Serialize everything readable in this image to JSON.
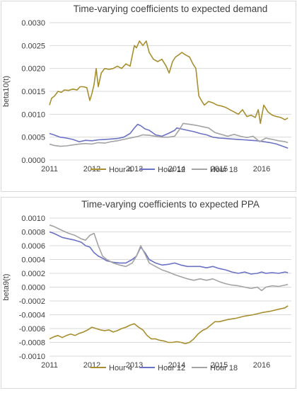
{
  "chart_data": [
    {
      "type": "line",
      "title": "Time-varying coefficients to expected demand",
      "xlabel": "",
      "ylabel": "beta10(t)",
      "xlim": [
        2011,
        2016.7
      ],
      "ylim": [
        0,
        0.003
      ],
      "x_ticks": [
        "2011",
        "2012",
        "2013",
        "2014",
        "2015",
        "2016"
      ],
      "y_ticks": [
        "0.0000",
        "0.0005",
        "0.0010",
        "0.0015",
        "0.0020",
        "0.0025",
        "0.0030"
      ],
      "grid": "horizontal",
      "legend": "bottom",
      "series": [
        {
          "name": "Hour 4",
          "color": "#a88e2e",
          "x": [
            2011.0,
            2011.05,
            2011.12,
            2011.2,
            2011.28,
            2011.35,
            2011.45,
            2011.55,
            2011.65,
            2011.72,
            2011.8,
            2011.88,
            2011.95,
            2012.0,
            2012.05,
            2012.1,
            2012.15,
            2012.22,
            2012.3,
            2012.4,
            2012.5,
            2012.6,
            2012.7,
            2012.8,
            2012.9,
            2013.0,
            2013.05,
            2013.12,
            2013.2,
            2013.28,
            2013.35,
            2013.45,
            2013.55,
            2013.65,
            2013.75,
            2013.82,
            2013.9,
            2013.97,
            2014.05,
            2014.12,
            2014.2,
            2014.3,
            2014.38,
            2014.45,
            2014.52,
            2014.58,
            2014.65,
            2014.75,
            2014.85,
            2014.95,
            2015.05,
            2015.15,
            2015.25,
            2015.35,
            2015.45,
            2015.55,
            2015.65,
            2015.75,
            2015.85,
            2015.92,
            2015.97,
            2016.05,
            2016.15,
            2016.25,
            2016.35,
            2016.45,
            2016.55,
            2016.62
          ],
          "values": [
            0.0012,
            0.00135,
            0.0014,
            0.0015,
            0.00148,
            0.00153,
            0.00152,
            0.00155,
            0.00153,
            0.0016,
            0.0016,
            0.00158,
            0.0013,
            0.00145,
            0.00165,
            0.002,
            0.0016,
            0.0019,
            0.002,
            0.00198,
            0.002,
            0.00205,
            0.002,
            0.0021,
            0.00205,
            0.0025,
            0.00245,
            0.0026,
            0.0025,
            0.0026,
            0.00235,
            0.0022,
            0.00215,
            0.0022,
            0.00205,
            0.0019,
            0.00215,
            0.00225,
            0.0023,
            0.00235,
            0.0023,
            0.00225,
            0.0021,
            0.002,
            0.0014,
            0.0013,
            0.0012,
            0.00128,
            0.00125,
            0.0012,
            0.00118,
            0.00115,
            0.0011,
            0.00105,
            0.001,
            0.0011,
            0.00095,
            0.00098,
            0.00093,
            0.0011,
            0.0008,
            0.0012,
            0.00105,
            0.00098,
            0.00095,
            0.00093,
            0.00088,
            0.00092
          ]
        },
        {
          "name": "Hour 12",
          "color": "#6b72c4",
          "x": [
            2011.0,
            2011.1,
            2011.25,
            2011.4,
            2011.55,
            2011.7,
            2011.85,
            2012.0,
            2012.15,
            2012.3,
            2012.45,
            2012.6,
            2012.75,
            2012.9,
            2013.0,
            2013.08,
            2013.15,
            2013.25,
            2013.35,
            2013.5,
            2013.65,
            2013.8,
            2013.95,
            2014.0,
            2014.1,
            2014.25,
            2014.4,
            2014.55,
            2014.7,
            2014.85,
            2015.0,
            2015.15,
            2015.3,
            2015.45,
            2015.6,
            2015.75,
            2015.9,
            2016.05,
            2016.2,
            2016.35,
            2016.5,
            2016.62
          ],
          "values": [
            0.00058,
            0.00055,
            0.0005,
            0.00048,
            0.00045,
            0.0004,
            0.00043,
            0.00042,
            0.00044,
            0.00045,
            0.00046,
            0.00047,
            0.0005,
            0.00058,
            0.0007,
            0.00078,
            0.00075,
            0.00068,
            0.00065,
            0.00055,
            0.00052,
            0.00058,
            0.00065,
            0.0007,
            0.00068,
            0.00065,
            0.00062,
            0.00058,
            0.00055,
            0.0005,
            0.00048,
            0.00047,
            0.00046,
            0.00045,
            0.00044,
            0.00043,
            0.00042,
            0.0004,
            0.00038,
            0.00035,
            0.0003,
            0.00026
          ]
        },
        {
          "name": "Hour 18",
          "color": "#a3a3a3",
          "x": [
            2011.0,
            2011.1,
            2011.25,
            2011.4,
            2011.55,
            2011.7,
            2011.85,
            2012.0,
            2012.15,
            2012.3,
            2012.45,
            2012.6,
            2012.75,
            2012.9,
            2013.0,
            2013.1,
            2013.2,
            2013.35,
            2013.5,
            2013.65,
            2013.8,
            2013.95,
            2014.05,
            2014.15,
            2014.3,
            2014.45,
            2014.6,
            2014.75,
            2014.9,
            2015.05,
            2015.2,
            2015.35,
            2015.5,
            2015.65,
            2015.8,
            2015.95,
            2016.1,
            2016.25,
            2016.4,
            2016.55,
            2016.62
          ],
          "values": [
            0.00035,
            0.00032,
            0.0003,
            0.00031,
            0.00033,
            0.00035,
            0.00036,
            0.00035,
            0.00038,
            0.00037,
            0.0004,
            0.00042,
            0.00045,
            0.00048,
            0.0005,
            0.00052,
            0.00055,
            0.00054,
            0.00052,
            0.0005,
            0.0005,
            0.00052,
            0.00065,
            0.0008,
            0.00078,
            0.00076,
            0.00073,
            0.0007,
            0.0006,
            0.00056,
            0.00052,
            0.00056,
            0.00052,
            0.00049,
            0.00052,
            0.0004,
            0.00048,
            0.00045,
            0.00042,
            0.0004,
            0.00038
          ]
        }
      ]
    },
    {
      "type": "line",
      "title": "Time-varying coefficients to expected PPA",
      "xlabel": "",
      "ylabel": "beta9(t)",
      "xlim": [
        2011,
        2016.7
      ],
      "ylim": [
        -0.001,
        0.001
      ],
      "x_ticks": [
        "2011",
        "2012",
        "2013",
        "2014",
        "2015",
        "2016"
      ],
      "y_ticks": [
        "-0.0010",
        "-0.0008",
        "-0.0006",
        "-0.0004",
        "-0.0002",
        "0.0000",
        "0.0002",
        "0.0004",
        "0.0006",
        "0.0008",
        "0.0010"
      ],
      "grid": "horizontal",
      "legend": "bottom",
      "series": [
        {
          "name": "Hour 4",
          "color": "#a88e2e",
          "x": [
            2011.0,
            2011.1,
            2011.2,
            2011.3,
            2011.4,
            2011.5,
            2011.6,
            2011.7,
            2011.8,
            2011.9,
            2012.0,
            2012.1,
            2012.2,
            2012.3,
            2012.4,
            2012.5,
            2012.6,
            2012.7,
            2012.8,
            2012.9,
            2013.0,
            2013.1,
            2013.2,
            2013.3,
            2013.4,
            2013.5,
            2013.6,
            2013.7,
            2013.8,
            2013.9,
            2014.0,
            2014.1,
            2014.2,
            2014.3,
            2014.4,
            2014.5,
            2014.6,
            2014.7,
            2014.8,
            2014.9,
            2015.0,
            2015.2,
            2015.4,
            2015.6,
            2015.8,
            2016.0,
            2016.2,
            2016.4,
            2016.55,
            2016.62
          ],
          "values": [
            -0.00075,
            -0.00072,
            -0.0007,
            -0.00073,
            -0.0007,
            -0.00068,
            -0.0007,
            -0.00067,
            -0.00065,
            -0.00062,
            -0.00058,
            -0.0006,
            -0.00062,
            -0.00063,
            -0.00062,
            -0.00065,
            -0.00063,
            -0.0006,
            -0.00058,
            -0.00055,
            -0.00053,
            -0.00058,
            -0.00062,
            -0.0007,
            -0.00075,
            -0.00075,
            -0.00077,
            -0.00078,
            -0.0008,
            -0.0008,
            -0.00079,
            -0.0008,
            -0.00082,
            -0.0008,
            -0.00075,
            -0.00068,
            -0.00063,
            -0.0006,
            -0.00055,
            -0.0005,
            -0.0005,
            -0.00047,
            -0.00045,
            -0.00042,
            -0.0004,
            -0.00037,
            -0.00035,
            -0.00032,
            -0.0003,
            -0.00027
          ]
        },
        {
          "name": "Hour 12",
          "color": "#6b72c4",
          "x": [
            2011.0,
            2011.1,
            2011.2,
            2011.3,
            2011.45,
            2011.6,
            2011.75,
            2011.85,
            2011.95,
            2012.05,
            2012.15,
            2012.25,
            2012.35,
            2012.5,
            2012.65,
            2012.8,
            2012.95,
            2013.05,
            2013.15,
            2013.25,
            2013.35,
            2013.5,
            2013.65,
            2013.8,
            2013.95,
            2014.1,
            2014.25,
            2014.4,
            2014.55,
            2014.7,
            2014.85,
            2015.0,
            2015.15,
            2015.3,
            2015.45,
            2015.6,
            2015.75,
            2015.9,
            2016.0,
            2016.1,
            2016.25,
            2016.4,
            2016.55,
            2016.62
          ],
          "values": [
            0.0008,
            0.00078,
            0.00075,
            0.00072,
            0.0007,
            0.00068,
            0.00065,
            0.0006,
            0.00058,
            0.0005,
            0.00045,
            0.00042,
            0.00038,
            0.00036,
            0.00035,
            0.00035,
            0.0004,
            0.00045,
            0.00058,
            0.0005,
            0.0004,
            0.00035,
            0.00032,
            0.00033,
            0.00035,
            0.00032,
            0.0003,
            0.0003,
            0.0003,
            0.00028,
            0.0003,
            0.00027,
            0.00025,
            0.00022,
            0.0002,
            0.00022,
            0.00019,
            0.0002,
            0.00022,
            0.0002,
            0.00021,
            0.0002,
            0.00022,
            0.00021
          ]
        },
        {
          "name": "Hour 18",
          "color": "#a3a3a3",
          "x": [
            2011.0,
            2011.1,
            2011.2,
            2011.3,
            2011.45,
            2011.6,
            2011.75,
            2011.85,
            2011.95,
            2012.05,
            2012.15,
            2012.25,
            2012.35,
            2012.5,
            2012.65,
            2012.8,
            2012.95,
            2013.05,
            2013.15,
            2013.25,
            2013.35,
            2013.5,
            2013.65,
            2013.8,
            2013.95,
            2014.1,
            2014.25,
            2014.4,
            2014.55,
            2014.7,
            2014.85,
            2015.0,
            2015.15,
            2015.3,
            2015.45,
            2015.6,
            2015.75,
            2015.9,
            2016.0,
            2016.1,
            2016.25,
            2016.4,
            2016.55,
            2016.62
          ],
          "values": [
            0.0009,
            0.00088,
            0.00085,
            0.00082,
            0.00078,
            0.00075,
            0.0007,
            0.00068,
            0.00075,
            0.00078,
            0.0006,
            0.00045,
            0.0004,
            0.00035,
            0.00032,
            0.0003,
            0.00035,
            0.00045,
            0.0006,
            0.00048,
            0.00035,
            0.0003,
            0.00025,
            0.00022,
            0.00018,
            0.00015,
            0.00012,
            0.0001,
            0.00012,
            0.0001,
            0.00012,
            8e-05,
            5e-05,
            3e-05,
            2e-05,
            0.0,
            -2e-05,
            0.0,
            -5e-05,
            0.0,
            2e-05,
            1e-05,
            3e-05,
            4e-05
          ]
        }
      ]
    }
  ]
}
